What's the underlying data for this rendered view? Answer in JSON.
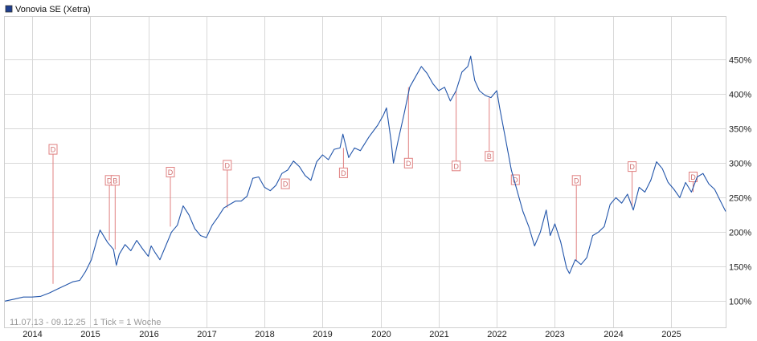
{
  "chart_data": {
    "type": "line",
    "title": "Vonovia SE (Xetra)",
    "footer": {
      "range": "11.07.13 - 09.12.25",
      "interval": "1 Tick = 1 Woche"
    },
    "colors": {
      "line": "#2255aa",
      "legend_swatch": "#1f3f8f",
      "grid": "#d8d8d8",
      "event_marker": "#e08080"
    },
    "grid": true,
    "x_axis": {
      "start": 2013.53,
      "end": 2025.94,
      "tick_labels": [
        "2014",
        "2015",
        "2016",
        "2017",
        "2018",
        "2019",
        "2020",
        "2021",
        "2022",
        "2023",
        "2024",
        "2025"
      ]
    },
    "y_axis": {
      "unit": "%",
      "position": "right",
      "range": [
        62,
        512
      ],
      "tick_values": [
        100,
        150,
        200,
        250,
        300,
        350,
        400,
        450
      ],
      "tick_labels": [
        "100%",
        "150%",
        "200%",
        "250%",
        "300%",
        "350%",
        "400%",
        "450%"
      ]
    },
    "series": [
      {
        "values": [
          [
            2013.53,
            100
          ],
          [
            2013.7,
            103
          ],
          [
            2013.85,
            106
          ],
          [
            2014.0,
            106
          ],
          [
            2014.15,
            107
          ],
          [
            2014.3,
            112
          ],
          [
            2014.45,
            118
          ],
          [
            2014.55,
            122
          ],
          [
            2014.7,
            128
          ],
          [
            2014.82,
            130
          ],
          [
            2014.92,
            143
          ],
          [
            2015.02,
            160
          ],
          [
            2015.12,
            190
          ],
          [
            2015.17,
            203
          ],
          [
            2015.22,
            196
          ],
          [
            2015.3,
            185
          ],
          [
            2015.4,
            175
          ],
          [
            2015.45,
            152
          ],
          [
            2015.5,
            168
          ],
          [
            2015.6,
            182
          ],
          [
            2015.7,
            173
          ],
          [
            2015.8,
            188
          ],
          [
            2015.9,
            176
          ],
          [
            2016.0,
            165
          ],
          [
            2016.05,
            180
          ],
          [
            2016.12,
            170
          ],
          [
            2016.2,
            160
          ],
          [
            2016.3,
            180
          ],
          [
            2016.4,
            200
          ],
          [
            2016.5,
            210
          ],
          [
            2016.6,
            238
          ],
          [
            2016.7,
            225
          ],
          [
            2016.8,
            205
          ],
          [
            2016.9,
            195
          ],
          [
            2017.0,
            192
          ],
          [
            2017.1,
            210
          ],
          [
            2017.2,
            222
          ],
          [
            2017.3,
            235
          ],
          [
            2017.4,
            240
          ],
          [
            2017.5,
            245
          ],
          [
            2017.6,
            245
          ],
          [
            2017.7,
            252
          ],
          [
            2017.8,
            278
          ],
          [
            2017.9,
            280
          ],
          [
            2018.0,
            265
          ],
          [
            2018.1,
            260
          ],
          [
            2018.2,
            268
          ],
          [
            2018.3,
            285
          ],
          [
            2018.4,
            290
          ],
          [
            2018.5,
            303
          ],
          [
            2018.6,
            295
          ],
          [
            2018.7,
            282
          ],
          [
            2018.8,
            275
          ],
          [
            2018.9,
            302
          ],
          [
            2019.0,
            312
          ],
          [
            2019.1,
            305
          ],
          [
            2019.2,
            320
          ],
          [
            2019.3,
            322
          ],
          [
            2019.35,
            342
          ],
          [
            2019.45,
            308
          ],
          [
            2019.55,
            322
          ],
          [
            2019.65,
            318
          ],
          [
            2019.8,
            338
          ],
          [
            2019.95,
            355
          ],
          [
            2020.05,
            370
          ],
          [
            2020.1,
            380
          ],
          [
            2020.18,
            332
          ],
          [
            2020.22,
            300
          ],
          [
            2020.3,
            332
          ],
          [
            2020.4,
            370
          ],
          [
            2020.5,
            410
          ],
          [
            2020.6,
            425
          ],
          [
            2020.7,
            440
          ],
          [
            2020.8,
            430
          ],
          [
            2020.9,
            415
          ],
          [
            2021.0,
            405
          ],
          [
            2021.1,
            410
          ],
          [
            2021.2,
            390
          ],
          [
            2021.3,
            405
          ],
          [
            2021.4,
            432
          ],
          [
            2021.5,
            440
          ],
          [
            2021.55,
            455
          ],
          [
            2021.62,
            420
          ],
          [
            2021.7,
            405
          ],
          [
            2021.8,
            398
          ],
          [
            2021.9,
            395
          ],
          [
            2022.0,
            405
          ],
          [
            2022.05,
            380
          ],
          [
            2022.15,
            335
          ],
          [
            2022.25,
            290
          ],
          [
            2022.35,
            260
          ],
          [
            2022.45,
            230
          ],
          [
            2022.55,
            208
          ],
          [
            2022.65,
            180
          ],
          [
            2022.75,
            200
          ],
          [
            2022.85,
            232
          ],
          [
            2022.92,
            195
          ],
          [
            2023.0,
            212
          ],
          [
            2023.1,
            186
          ],
          [
            2023.2,
            148
          ],
          [
            2023.25,
            140
          ],
          [
            2023.35,
            160
          ],
          [
            2023.45,
            153
          ],
          [
            2023.55,
            163
          ],
          [
            2023.65,
            195
          ],
          [
            2023.75,
            200
          ],
          [
            2023.85,
            208
          ],
          [
            2023.95,
            240
          ],
          [
            2024.05,
            250
          ],
          [
            2024.15,
            242
          ],
          [
            2024.25,
            255
          ],
          [
            2024.35,
            232
          ],
          [
            2024.45,
            265
          ],
          [
            2024.55,
            258
          ],
          [
            2024.65,
            275
          ],
          [
            2024.75,
            302
          ],
          [
            2024.85,
            292
          ],
          [
            2024.95,
            272
          ],
          [
            2025.05,
            262
          ],
          [
            2025.15,
            250
          ],
          [
            2025.25,
            272
          ],
          [
            2025.35,
            258
          ],
          [
            2025.45,
            280
          ],
          [
            2025.55,
            285
          ],
          [
            2025.65,
            270
          ],
          [
            2025.75,
            262
          ],
          [
            2025.85,
            245
          ],
          [
            2025.94,
            230
          ]
        ]
      }
    ],
    "events": [
      {
        "label": "D",
        "x": 2014.36,
        "y": 125,
        "box_y": 320
      },
      {
        "label": "D",
        "x": 2015.33,
        "y": 188,
        "box_y": 275
      },
      {
        "label": "B",
        "x": 2015.43,
        "y": 175,
        "box_y": 275
      },
      {
        "label": "D",
        "x": 2016.38,
        "y": 208,
        "box_y": 287
      },
      {
        "label": "D",
        "x": 2017.36,
        "y": 235,
        "box_y": 297
      },
      {
        "label": "D",
        "x": 2018.36,
        "y": 265,
        "box_y": 270
      },
      {
        "label": "D",
        "x": 2019.36,
        "y": 322,
        "box_y": 286
      },
      {
        "label": "D",
        "x": 2020.48,
        "y": 410,
        "box_y": 300
      },
      {
        "label": "D",
        "x": 2021.3,
        "y": 405,
        "box_y": 296
      },
      {
        "label": "B",
        "x": 2021.87,
        "y": 395,
        "box_y": 310
      },
      {
        "label": "D",
        "x": 2022.32,
        "y": 270,
        "box_y": 276
      },
      {
        "label": "D",
        "x": 2023.37,
        "y": 158,
        "box_y": 275
      },
      {
        "label": "D",
        "x": 2024.33,
        "y": 238,
        "box_y": 295
      },
      {
        "label": "D",
        "x": 2025.38,
        "y": 258,
        "box_y": 280
      }
    ]
  }
}
